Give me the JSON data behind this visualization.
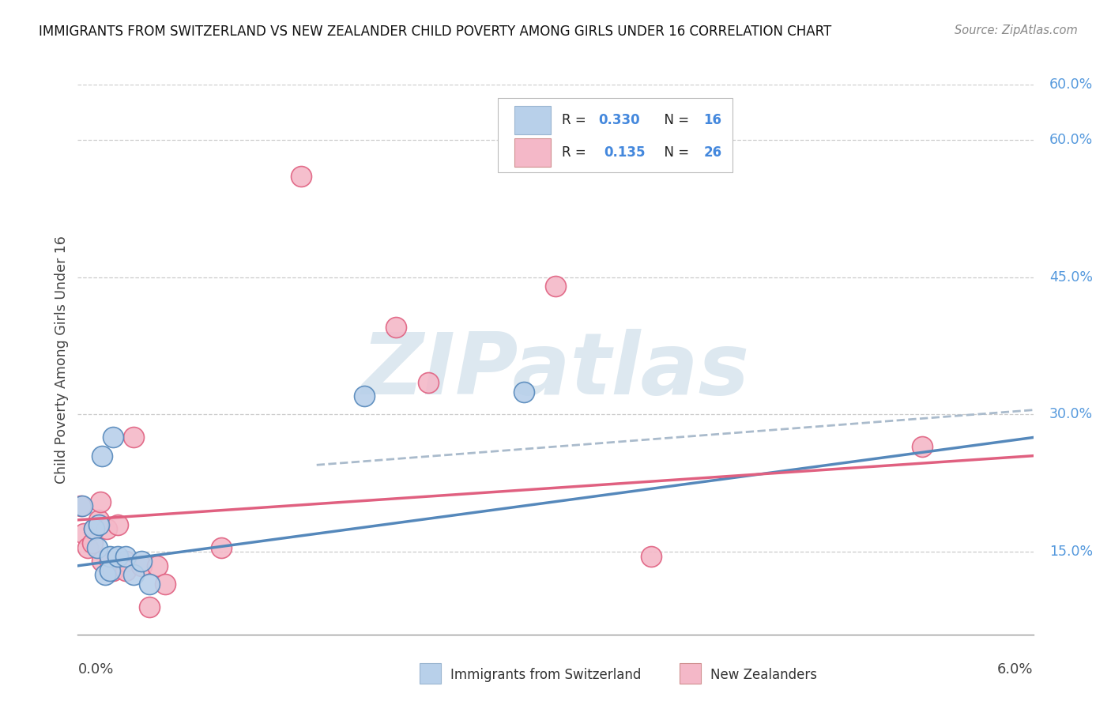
{
  "title": "IMMIGRANTS FROM SWITZERLAND VS NEW ZEALANDER CHILD POVERTY AMONG GIRLS UNDER 16 CORRELATION CHART",
  "source": "Source: ZipAtlas.com",
  "ylabel": "Child Poverty Among Girls Under 16",
  "xlim": [
    0.0,
    0.06
  ],
  "ylim": [
    0.06,
    0.66
  ],
  "yticks": [
    0.15,
    0.3,
    0.45,
    0.6
  ],
  "ytick_labels": [
    "15.0%",
    "30.0%",
    "45.0%",
    "60.0%"
  ],
  "watermark": "ZIPatlas",
  "color_swiss": "#b8d0ea",
  "color_nz": "#f4b8c8",
  "line_color_swiss": "#5588bb",
  "line_color_nz": "#e06080",
  "dashed_color": "#aabbcc",
  "swiss_points_x": [
    0.0003,
    0.001,
    0.0012,
    0.0013,
    0.0015,
    0.0017,
    0.002,
    0.002,
    0.0022,
    0.0025,
    0.003,
    0.0035,
    0.004,
    0.0045,
    0.018,
    0.028
  ],
  "swiss_points_y": [
    0.2,
    0.175,
    0.155,
    0.18,
    0.255,
    0.125,
    0.145,
    0.13,
    0.275,
    0.145,
    0.145,
    0.125,
    0.14,
    0.115,
    0.32,
    0.325
  ],
  "nz_points_x": [
    0.0002,
    0.0004,
    0.0006,
    0.0009,
    0.001,
    0.0013,
    0.0014,
    0.0015,
    0.0018,
    0.002,
    0.0022,
    0.0025,
    0.003,
    0.003,
    0.0035,
    0.004,
    0.0045,
    0.005,
    0.0055,
    0.009,
    0.014,
    0.02,
    0.022,
    0.03,
    0.036,
    0.053
  ],
  "nz_points_y": [
    0.2,
    0.17,
    0.155,
    0.16,
    0.175,
    0.185,
    0.205,
    0.14,
    0.175,
    0.14,
    0.13,
    0.18,
    0.14,
    0.13,
    0.275,
    0.135,
    0.09,
    0.135,
    0.115,
    0.155,
    0.56,
    0.395,
    0.335,
    0.44,
    0.145,
    0.265
  ],
  "swiss_trend_x": [
    0.0,
    0.06
  ],
  "swiss_trend_y": [
    0.135,
    0.275
  ],
  "nz_trend_x": [
    0.0,
    0.06
  ],
  "nz_trend_y": [
    0.185,
    0.255
  ],
  "dashed_trend_x": [
    0.015,
    0.06
  ],
  "dashed_trend_y": [
    0.245,
    0.305
  ]
}
